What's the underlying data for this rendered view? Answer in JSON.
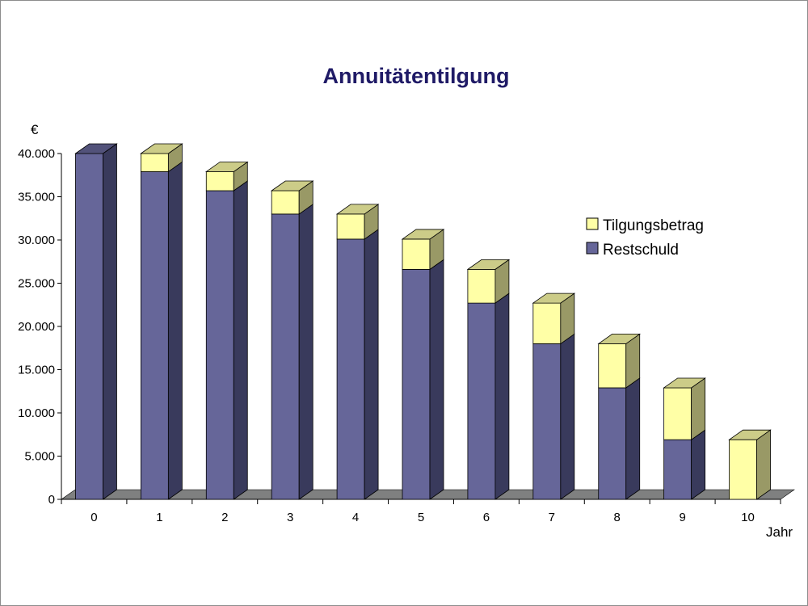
{
  "colors": {
    "restschuld_front": "#666699",
    "restschuld_side": "#393a5c",
    "restschuld_top": "#52527a",
    "tilgung_front": "#ffffa6",
    "tilgung_side": "#999966",
    "tilgung_top": "#cccc88",
    "floor": "#7f8080",
    "title": "#1f1a66"
  },
  "chart_data": {
    "type": "bar",
    "stacked": true,
    "three_d": true,
    "title": "Annuitätentilgung",
    "ylabel": "€",
    "xlabel": "Jahr",
    "ylim": [
      0,
      40000
    ],
    "yticks": [
      0,
      5000,
      10000,
      15000,
      20000,
      25000,
      30000,
      35000,
      40000
    ],
    "ytick_labels": [
      "0",
      "5.000",
      "10.000",
      "15.000",
      "20.000",
      "25.000",
      "30.000",
      "35.000",
      "40.000"
    ],
    "categories": [
      "0",
      "1",
      "2",
      "3",
      "4",
      "5",
      "6",
      "7",
      "8",
      "9",
      "10"
    ],
    "legend_position": "right",
    "legend": [
      "Tilgungsbetrag",
      "Restschuld"
    ],
    "series": [
      {
        "name": "Restschuld",
        "values": [
          40000,
          37900,
          35700,
          33000,
          30100,
          26600,
          22700,
          18000,
          12900,
          6900,
          0
        ]
      },
      {
        "name": "Tilgungsbetrag",
        "values": [
          0,
          2100,
          2200,
          2700,
          2900,
          3500,
          3900,
          4700,
          5100,
          6000,
          6900
        ]
      }
    ]
  }
}
